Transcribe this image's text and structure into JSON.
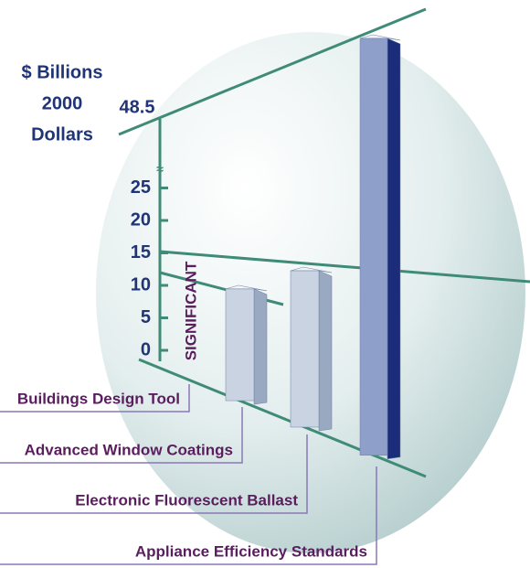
{
  "chart_data": {
    "type": "bar",
    "ylabel": [
      "$ Billions",
      "2000",
      "Dollars"
    ],
    "categories": [
      "Buildings Design Tool",
      "Advanced Window Coatings",
      "Electronic Fluorescent Ballast",
      "Appliance Efficiency Standards"
    ],
    "series": [
      {
        "values": [
          null,
          10,
          14,
          48.5
        ],
        "value_labels": [
          "SIGNIFICANT",
          null,
          null,
          null
        ],
        "colors": [
          "#c9d3e2",
          "#c9d3e2",
          "#c9d3e2",
          "#8e9fca"
        ],
        "side_colors": [
          "#9aa9c2",
          "#9aa9c2",
          "#9aa9c2",
          "#1b2c7a"
        ]
      }
    ],
    "ylim": [
      0,
      48.5
    ],
    "yticks": [
      0,
      5,
      10,
      15,
      20,
      25,
      48.5
    ],
    "axis_break": true
  }
}
